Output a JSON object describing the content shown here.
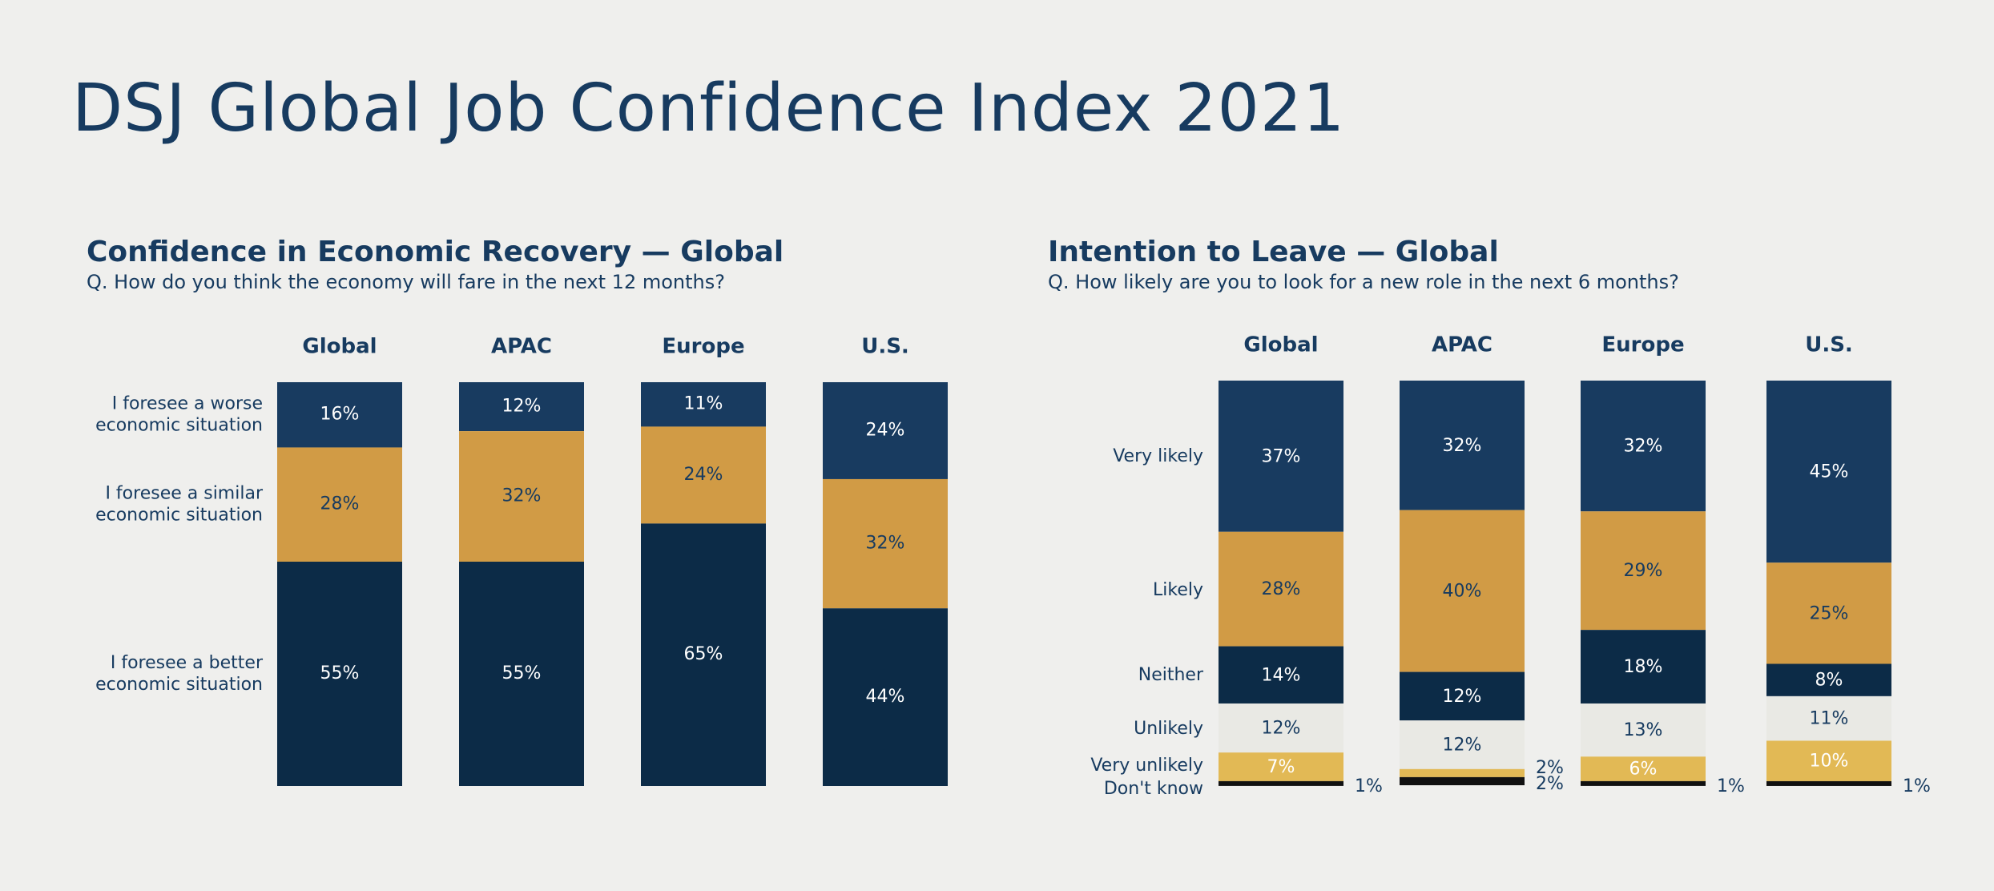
{
  "title": "DSJ Global Job Confidence Index 2021",
  "colors": {
    "background": "#efefed",
    "title": "#173b60",
    "dark_navy": "#0c2b47",
    "navy": "#183b60",
    "orange": "#d19b45",
    "light_gray": "#e9e9e4",
    "yellow": "#e2b955",
    "black": "#111111"
  },
  "chart_data": [
    {
      "type": "bar",
      "stacked": true,
      "title": "Confidence in Economic Recovery — Global",
      "subtitle": "Q. How do you think the economy will fare in the next 12 months?",
      "categories": [
        "Global",
        "APAC",
        "Europe",
        "U.S."
      ],
      "series": [
        {
          "name": "I foresee a worse economic situation",
          "label_lines": [
            "I foresee a worse",
            "economic situation"
          ],
          "color": "#183b60",
          "values": [
            16,
            12,
            11,
            24
          ]
        },
        {
          "name": "I foresee a similar economic situation",
          "label_lines": [
            "I foresee a similar",
            "economic situation"
          ],
          "color": "#d19b45",
          "values": [
            28,
            32,
            24,
            32
          ]
        },
        {
          "name": "I foresee a better economic situation",
          "label_lines": [
            "I foresee a better",
            "economic situation"
          ],
          "color": "#0c2b47",
          "values": [
            55,
            55,
            65,
            44
          ]
        }
      ],
      "ylim": [
        0,
        100
      ]
    },
    {
      "type": "bar",
      "stacked": true,
      "title": "Intention to Leave — Global",
      "subtitle": "Q. How likely are you to look for a new role in the next 6 months?",
      "categories": [
        "Global",
        "APAC",
        "Europe",
        "U.S."
      ],
      "series": [
        {
          "name": "Very likely",
          "color": "#183b60",
          "values": [
            37,
            32,
            32,
            45
          ]
        },
        {
          "name": "Likely",
          "color": "#d19b45",
          "values": [
            28,
            40,
            29,
            25
          ]
        },
        {
          "name": "Neither",
          "color": "#0c2b47",
          "values": [
            14,
            12,
            18,
            8
          ]
        },
        {
          "name": "Unlikely",
          "color": "#e9e9e4",
          "values": [
            12,
            12,
            13,
            11
          ]
        },
        {
          "name": "Very unlikely",
          "color": "#e2b955",
          "values": [
            7,
            2,
            6,
            10
          ]
        },
        {
          "name": "Don't know",
          "color": "#111111",
          "values": [
            1,
            2,
            1,
            1
          ]
        }
      ],
      "ylim": [
        0,
        100
      ]
    }
  ]
}
